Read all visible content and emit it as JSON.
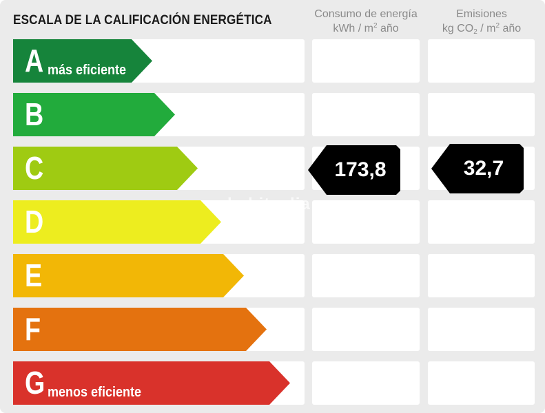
{
  "title": "ESCALA DE LA CALIFICACIÓN ENERGÉTICA",
  "columns": {
    "energy": {
      "line1": "Consumo de energía",
      "line2_prefix": "kWh / m",
      "line2_sup": "2",
      "line2_suffix": " año"
    },
    "emissions": {
      "line1": "Emisiones",
      "line2_prefix": "kg CO",
      "line2_sub": "2",
      "line2_mid": " / m",
      "line2_sup": "2",
      "line2_suffix": " año"
    }
  },
  "bands": [
    {
      "letter": "A",
      "label": "más eficiente",
      "color": "#16843b"
    },
    {
      "letter": "B",
      "label": "",
      "color": "#22ab3c"
    },
    {
      "letter": "C",
      "label": "",
      "color": "#9fcb12"
    },
    {
      "letter": "D",
      "label": "",
      "color": "#eded1f"
    },
    {
      "letter": "E",
      "label": "",
      "color": "#f2b706"
    },
    {
      "letter": "F",
      "label": "",
      "color": "#e4720f"
    },
    {
      "letter": "G",
      "label": "menos eficiente",
      "color": "#d9322b"
    }
  ],
  "rating": {
    "band": "C",
    "energy_value": "173,8",
    "emissions_value": "32,7",
    "indicator_color": "#000000"
  },
  "watermark": "habitaclia"
}
